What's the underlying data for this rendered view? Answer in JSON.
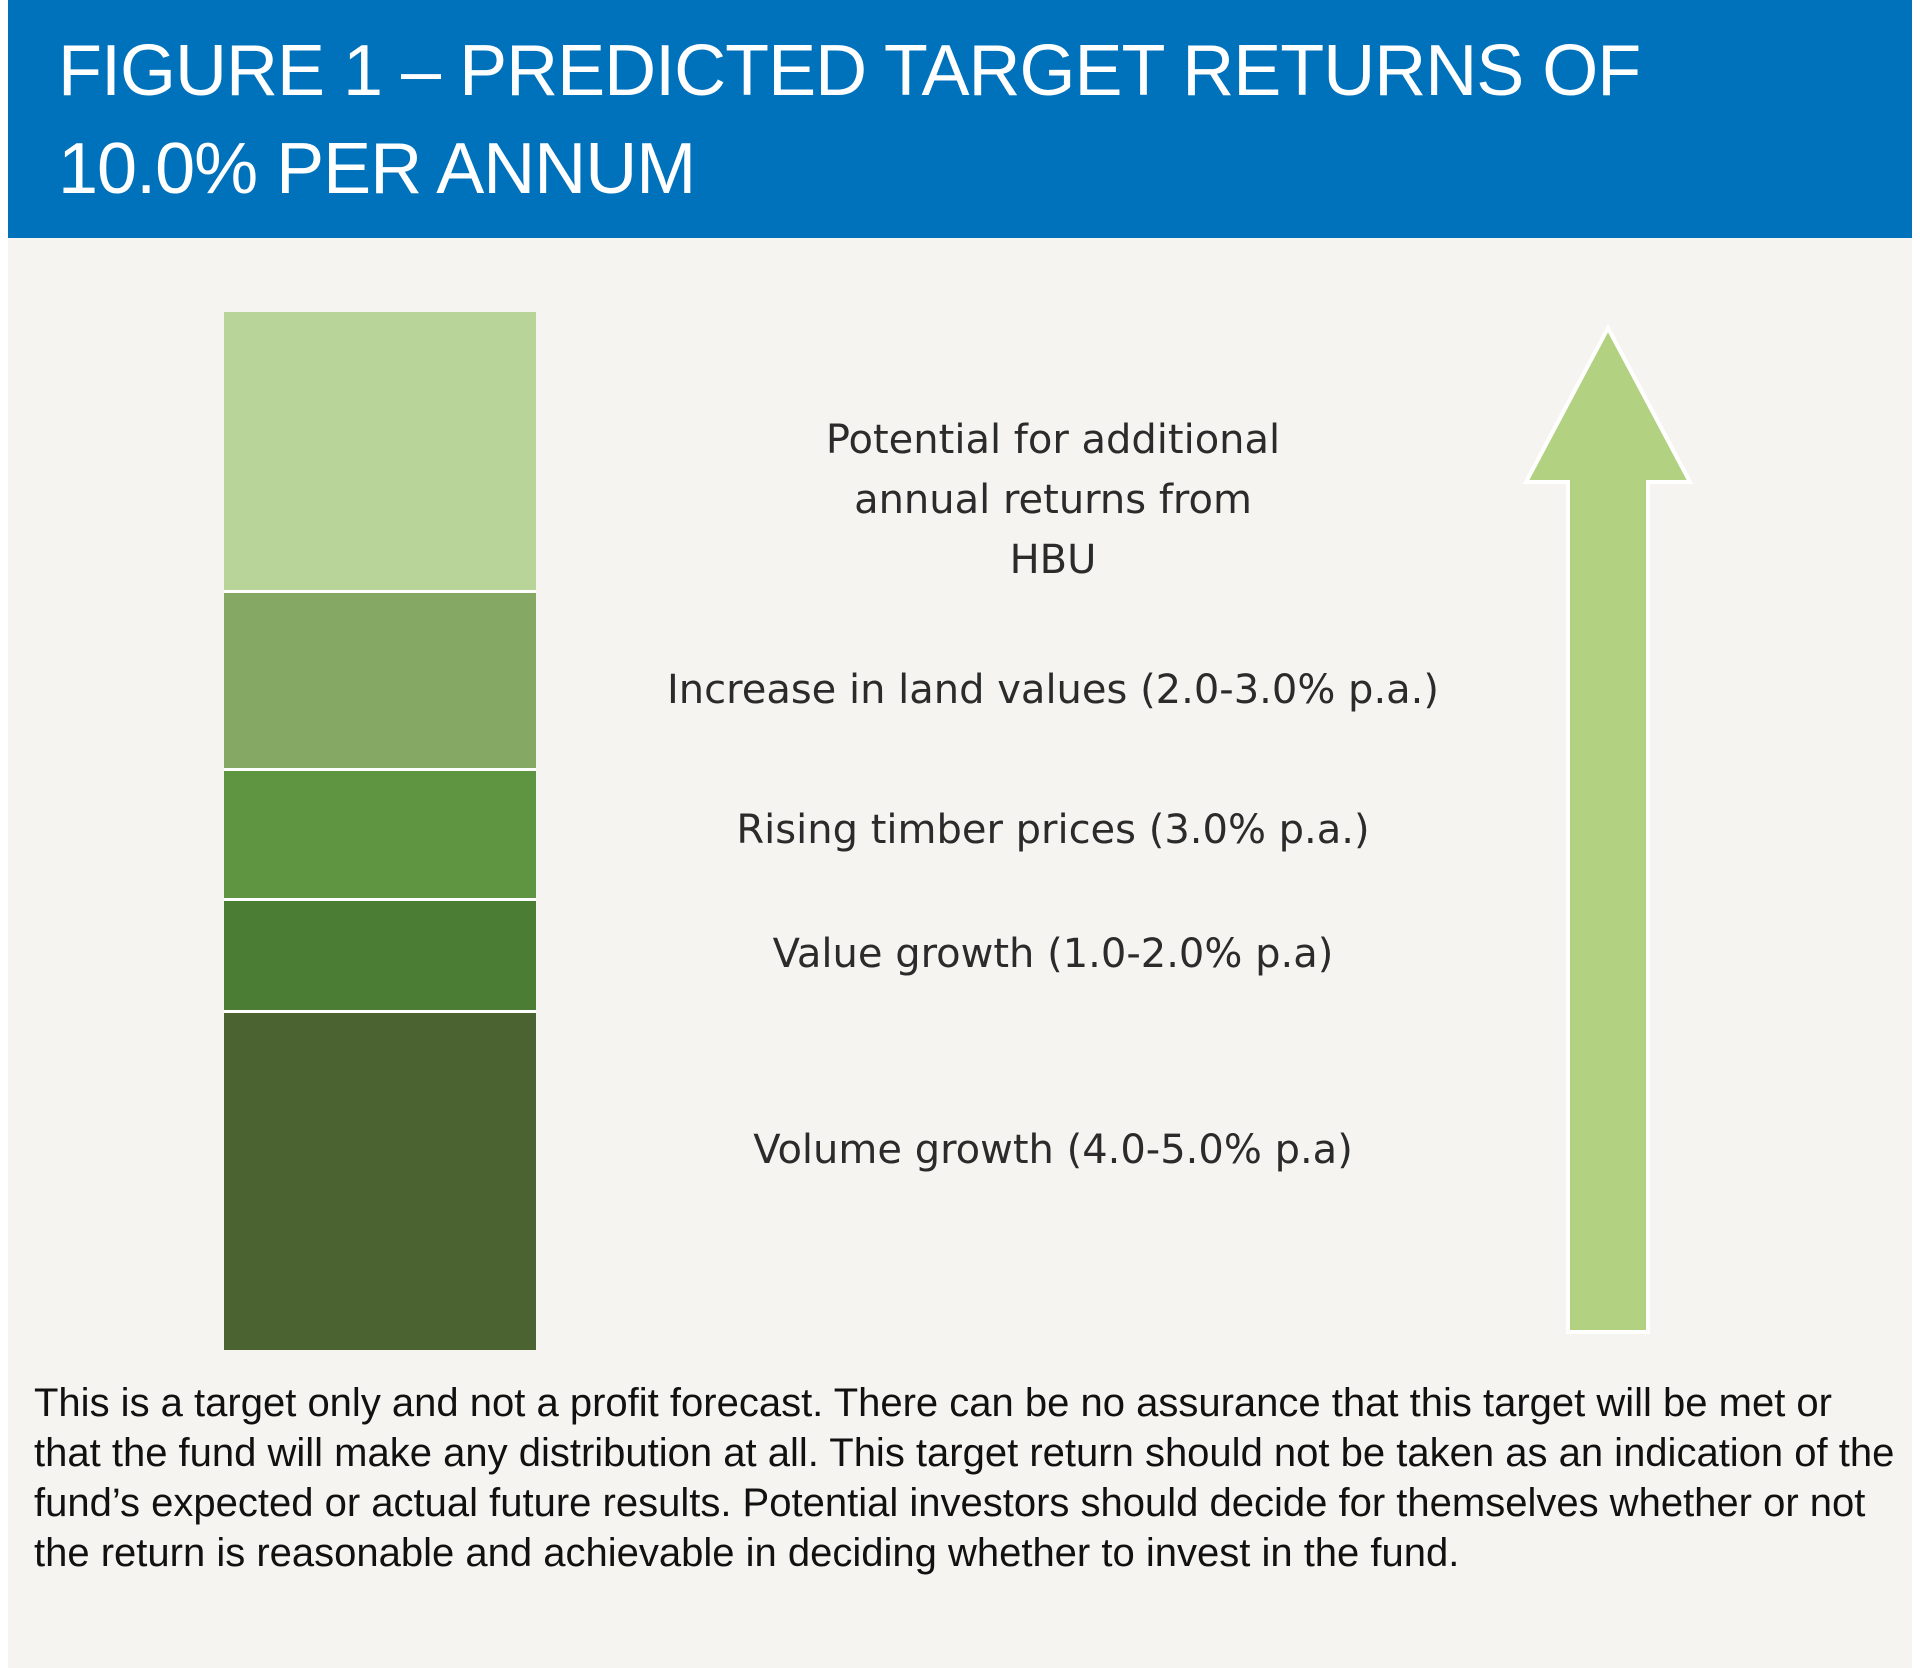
{
  "header": {
    "title": "FIGURE 1 – PREDICTED TARGET RETURNS OF 10.0% PER ANNUM"
  },
  "blocks": [
    {
      "label": "Potential for additional annual returns from HBU",
      "color": "#b8d499"
    },
    {
      "label": "Increase in land values (2.0-3.0% p.a.)",
      "color": "#86a865"
    },
    {
      "label": "Rising timber prices (3.0% p.a.)",
      "color": "#5f9440"
    },
    {
      "label": "Value growth (1.0-2.0% p.a)",
      "color": "#4c7d35"
    },
    {
      "label": "Volume growth (4.0-5.0% p.a)",
      "color": "#4a6330"
    }
  ],
  "arrow": {
    "icon": "up-arrow-icon",
    "color": "#b2d282"
  },
  "disclaimer": "This is a target only and not a profit forecast. There can be no assurance that this target will be met or that the fund will make any distribution at all. This target return should not be taken as an indication of the fund’s expected or actual future results. Potential investors should decide for themselves whether or not the return is reasonable and achievable in deciding whether to invest in the fund."
}
